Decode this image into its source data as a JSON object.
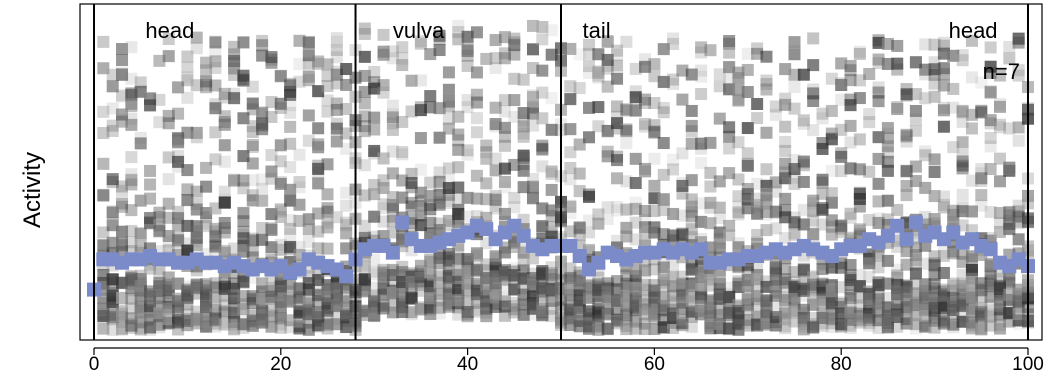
{
  "chart_data": {
    "type": "scatter",
    "title": "",
    "xlabel": "",
    "ylabel": "Activity",
    "xlim": [
      -1.5,
      101.5
    ],
    "ylim": [
      0,
      1
    ],
    "x_ticks": [
      "0",
      "20",
      "40",
      "60",
      "80",
      "100"
    ],
    "x_tick_values": [
      0,
      20,
      40,
      60,
      80,
      100
    ],
    "y_ticks_shown": false,
    "grid": false,
    "annotation_n": "n=7",
    "region_boundaries": [
      0,
      28,
      50,
      100
    ],
    "region_labels": [
      {
        "text": "head",
        "x": 5.5
      },
      {
        "text": "vulva",
        "x": 32
      },
      {
        "text": "tail",
        "x": 52.3
      },
      {
        "text": "head",
        "x": 91.5
      }
    ],
    "colors": {
      "mean_series": "#7b8ac8",
      "trial_points": "#3b3b3b",
      "frame": "#000000"
    },
    "series": [
      {
        "role": "individual trials (translucent)",
        "point_opacity_range": [
          0.12,
          0.75
        ],
        "x_range": [
          1,
          100
        ],
        "value_range": [
          0.03,
          0.95
        ]
      },
      {
        "role": "mean",
        "x": [
          0,
          1,
          2,
          3,
          4,
          5,
          6,
          7,
          8,
          9,
          10,
          11,
          12,
          13,
          14,
          15,
          16,
          17,
          18,
          19,
          20,
          21,
          22,
          23,
          24,
          25,
          26,
          27,
          28,
          29,
          30,
          31,
          32,
          33,
          34,
          35,
          36,
          37,
          38,
          39,
          40,
          41,
          42,
          43,
          44,
          45,
          46,
          47,
          48,
          49,
          50,
          51,
          52,
          53,
          54,
          55,
          56,
          57,
          58,
          59,
          60,
          61,
          62,
          63,
          64,
          65,
          66,
          67,
          68,
          69,
          70,
          71,
          72,
          73,
          74,
          75,
          76,
          77,
          78,
          79,
          80,
          81,
          82,
          83,
          84,
          85,
          86,
          87,
          88,
          89,
          90,
          91,
          92,
          93,
          94,
          95,
          96,
          97,
          98,
          99,
          100
        ],
        "values": [
          0.15,
          0.24,
          0.24,
          0.23,
          0.24,
          0.24,
          0.25,
          0.24,
          0.24,
          0.23,
          0.23,
          0.24,
          0.23,
          0.23,
          0.22,
          0.23,
          0.22,
          0.21,
          0.22,
          0.21,
          0.22,
          0.2,
          0.21,
          0.24,
          0.23,
          0.22,
          0.21,
          0.19,
          0.24,
          0.27,
          0.28,
          0.28,
          0.26,
          0.35,
          0.3,
          0.28,
          0.28,
          0.29,
          0.3,
          0.31,
          0.32,
          0.34,
          0.33,
          0.3,
          0.32,
          0.34,
          0.31,
          0.28,
          0.27,
          0.28,
          0.28,
          0.28,
          0.25,
          0.21,
          0.23,
          0.26,
          0.25,
          0.24,
          0.25,
          0.26,
          0.26,
          0.27,
          0.26,
          0.27,
          0.26,
          0.27,
          0.23,
          0.23,
          0.24,
          0.24,
          0.25,
          0.25,
          0.26,
          0.27,
          0.26,
          0.27,
          0.28,
          0.27,
          0.26,
          0.25,
          0.27,
          0.28,
          0.28,
          0.3,
          0.29,
          0.31,
          0.34,
          0.3,
          0.35,
          0.31,
          0.32,
          0.3,
          0.32,
          0.29,
          0.3,
          0.28,
          0.27,
          0.23,
          0.22,
          0.24,
          0.22
        ]
      }
    ]
  }
}
